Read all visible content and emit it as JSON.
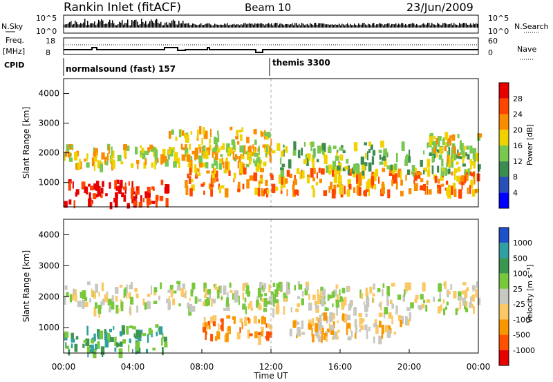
{
  "header": {
    "station": "Rankin Inlet (fitACF)",
    "beam": "Beam 10",
    "date": "23/Jun/2009"
  },
  "noise_panel": {
    "left_label": "N.Sky",
    "right_label": "N.Search",
    "left_ticks": [
      "10^5",
      "10^0"
    ],
    "right_ticks": [
      "10^5",
      "10^0"
    ]
  },
  "freq_panel": {
    "left_label_1": "Freq.",
    "left_label_2": "[MHz]",
    "right_label": "Nave",
    "left_ticks": [
      "18",
      "8"
    ],
    "right_ticks": [
      "60",
      "0"
    ]
  },
  "cpid_panel": {
    "label": "CPID",
    "modes": [
      {
        "name": "normalsound (fast) 157",
        "start": "00:00"
      },
      {
        "name": "themis 3300",
        "start": "12:00"
      }
    ]
  },
  "x_axis": {
    "label": "Time UT",
    "ticks": [
      "00:00",
      "04:00",
      "08:00",
      "12:00",
      "16:00",
      "20:00",
      "00:00"
    ]
  },
  "range_axis": {
    "label": "Slant Range [km]",
    "ticks": [
      "1000",
      "2000",
      "3000",
      "4000"
    ]
  },
  "power_colorbar": {
    "label": "Power [dB]",
    "ticks": [
      "4",
      "8",
      "12",
      "16",
      "20",
      "24",
      "28"
    ],
    "colors": [
      "#0000ff",
      "#2850b8",
      "#3c8c50",
      "#78c850",
      "#f0d200",
      "#fa8c00",
      "#ff4600",
      "#e60000"
    ]
  },
  "velocity_colorbar": {
    "label": "Velocity [m s⁻¹]",
    "ticks": [
      "1000",
      "500",
      "100",
      "25",
      "-25",
      "-100",
      "-500",
      "-1000"
    ],
    "colors": [
      "#1e50c8",
      "#32a0a0",
      "#3c9650",
      "#78c83c",
      "#c8c8c0",
      "#fac864",
      "#fa9600",
      "#ff5000",
      "#e60000"
    ]
  },
  "chart_data": {
    "type": "heatmap",
    "x_range_hours": [
      0,
      24
    ],
    "range_km": [
      180,
      4500
    ],
    "power_bands": [
      {
        "t0": 0,
        "t1": 6,
        "r0": 180,
        "r1": 1000,
        "level": 7
      },
      {
        "t0": 0,
        "t1": 12,
        "r0": 1500,
        "r1": 2200,
        "level": 4
      },
      {
        "t0": 6,
        "t1": 12,
        "r0": 1800,
        "r1": 2800,
        "level": 4
      },
      {
        "t0": 7,
        "t1": 24,
        "r0": 600,
        "r1": 1400,
        "level": 5
      },
      {
        "t0": 12,
        "t1": 24,
        "r0": 1300,
        "r1": 2300,
        "level": 3
      },
      {
        "t0": 21,
        "t1": 24,
        "r0": 1800,
        "r1": 2600,
        "level": 4
      }
    ],
    "velocity_bands": [
      {
        "t0": 0,
        "t1": 6,
        "r0": 180,
        "r1": 1000,
        "level": 2
      },
      {
        "t0": 0,
        "t1": 12,
        "r0": 1500,
        "r1": 2400,
        "level": 4
      },
      {
        "t0": 8,
        "t1": 12,
        "r0": 600,
        "r1": 1300,
        "level": 6
      },
      {
        "t0": 13,
        "t1": 20,
        "r0": 600,
        "r1": 1400,
        "level": 5
      },
      {
        "t0": 12,
        "t1": 24,
        "r0": 1500,
        "r1": 2400,
        "level": 4
      }
    ]
  }
}
